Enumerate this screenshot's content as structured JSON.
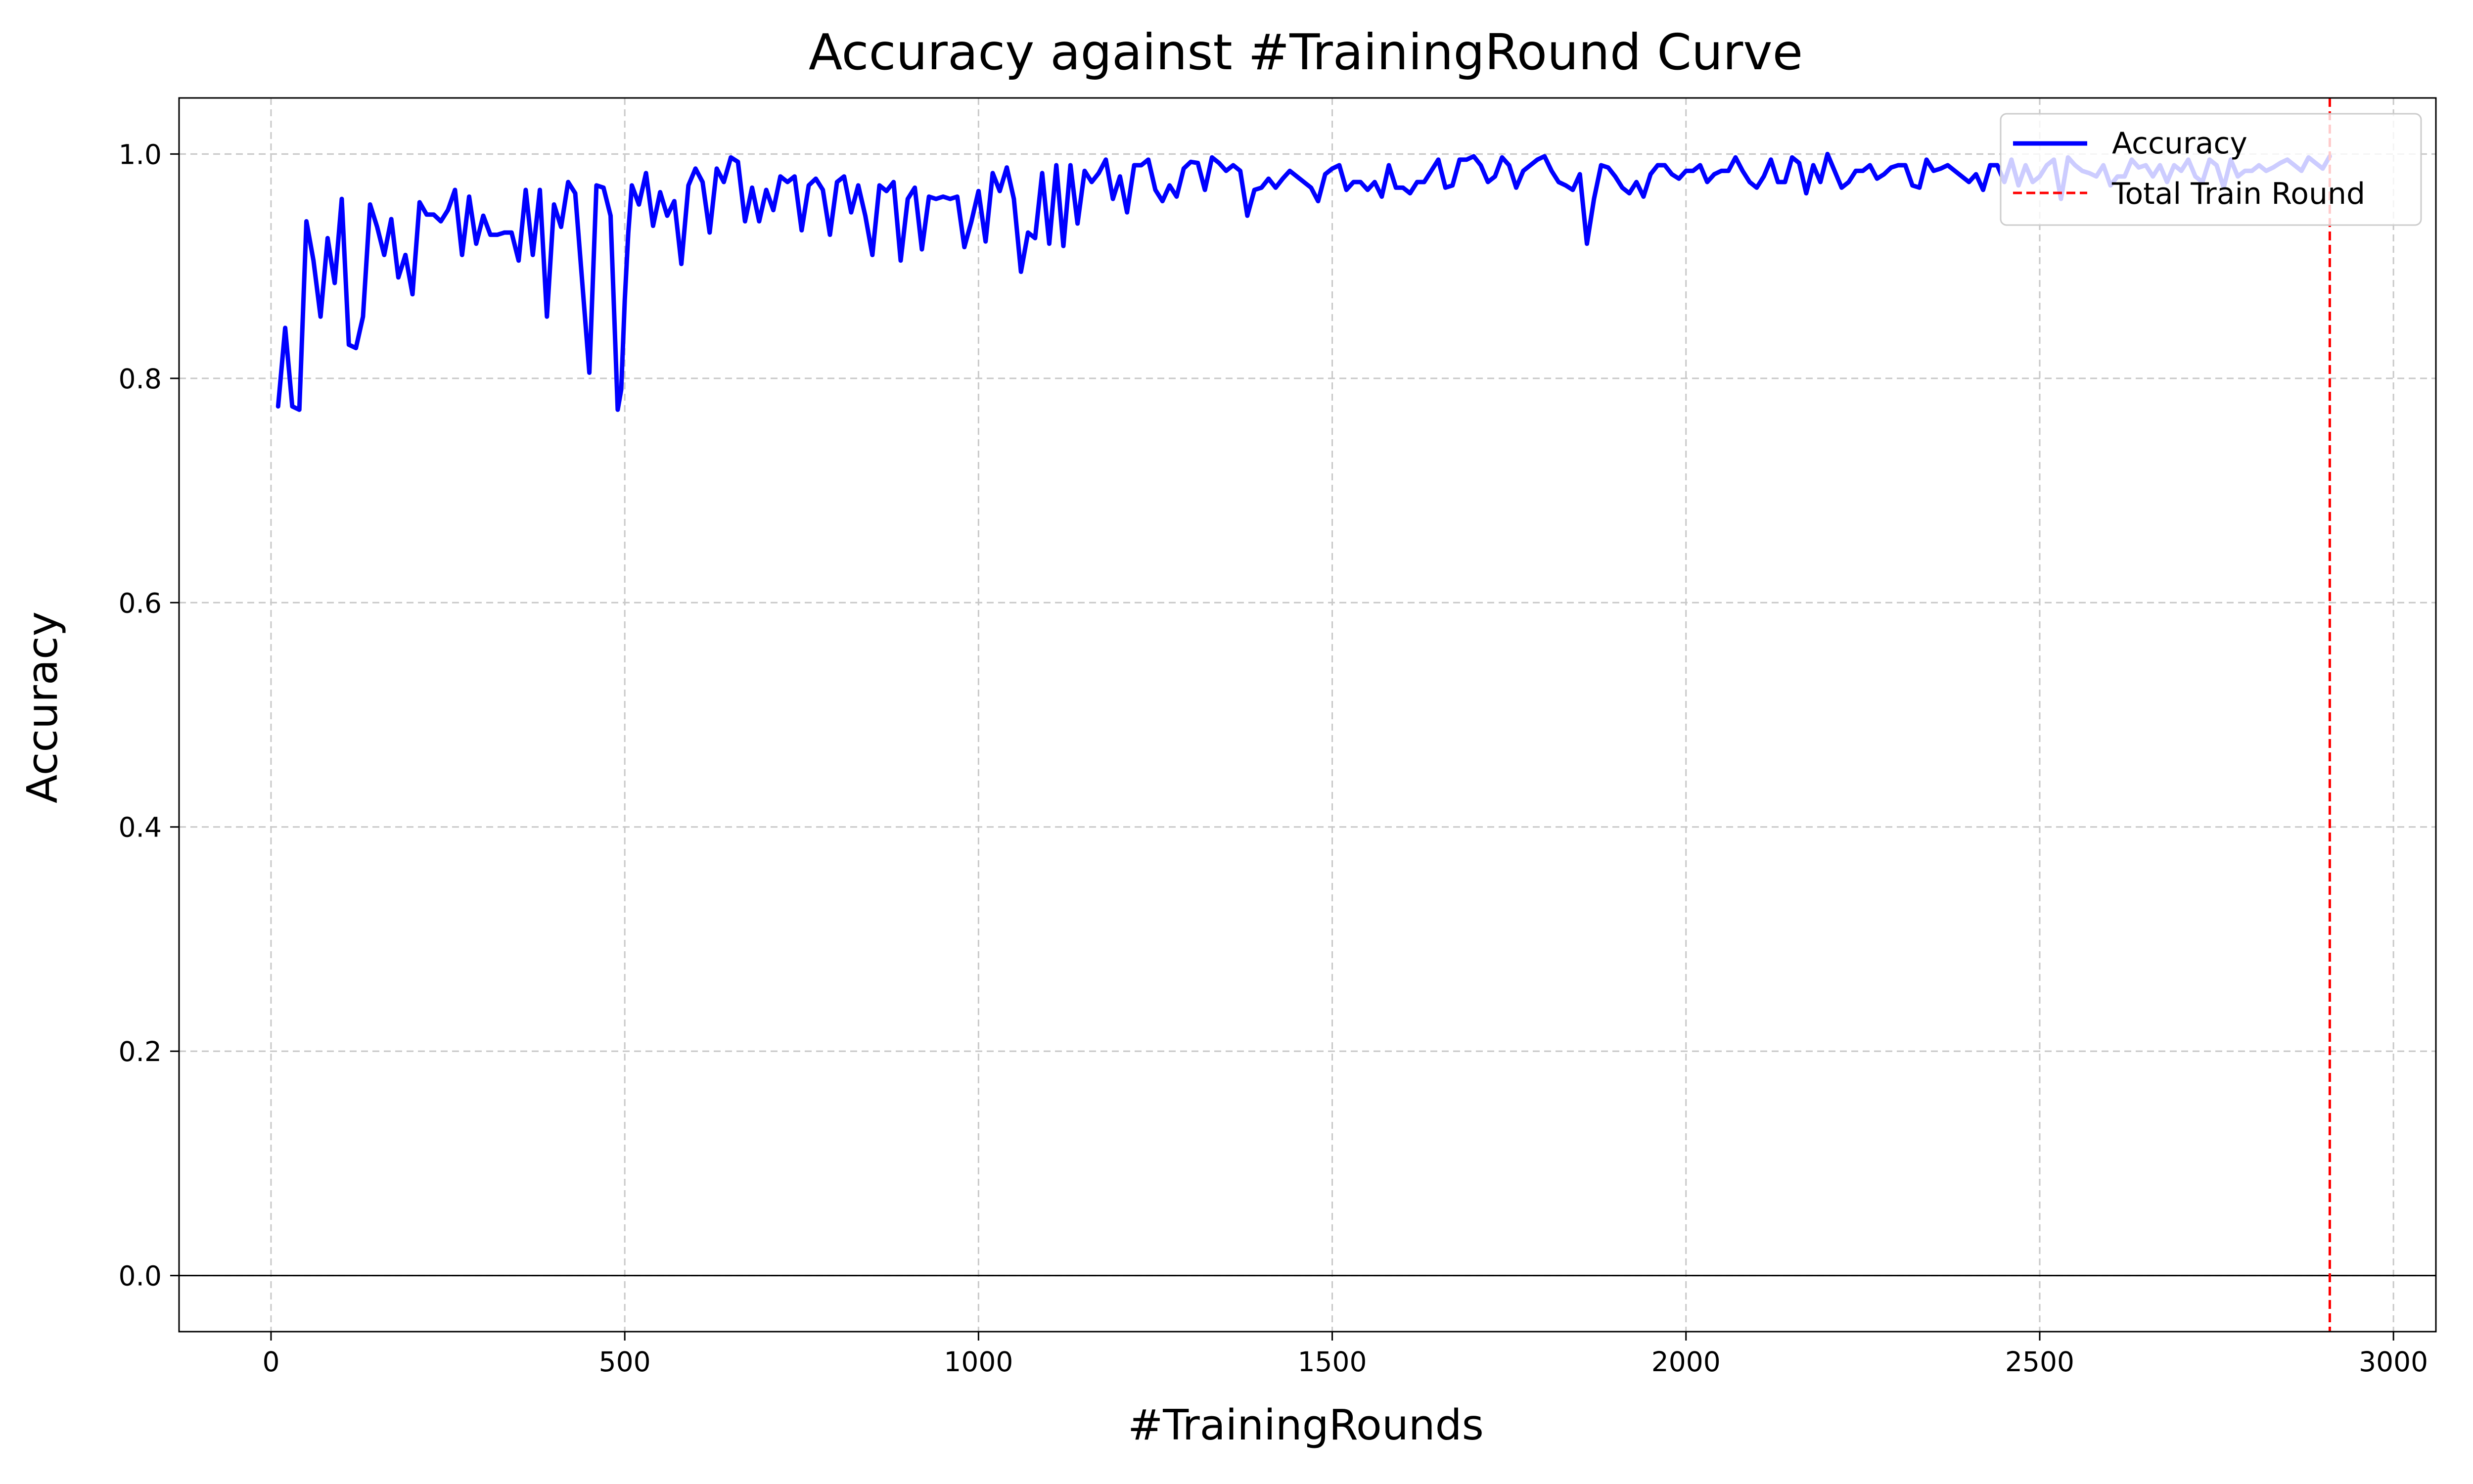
{
  "chart_data": {
    "type": "line",
    "title": "Accuracy against #TrainingRound Curve",
    "xlabel": "#TrainingRounds",
    "ylabel": "Accuracy",
    "xlim": [
      -130,
      3060
    ],
    "ylim": [
      -0.05,
      1.05
    ],
    "xticks": [
      0,
      500,
      1000,
      1500,
      2000,
      2500,
      3000
    ],
    "yticks": [
      0.0,
      0.2,
      0.4,
      0.6,
      0.8,
      1.0
    ],
    "xtick_labels": [
      "0",
      "500",
      "1000",
      "1500",
      "2000",
      "2500",
      "3000"
    ],
    "ytick_labels": [
      "0.0",
      "0.2",
      "0.4",
      "0.6",
      "0.8",
      "1.0"
    ],
    "grid": true,
    "legend_position": "top-right",
    "colors": {
      "accuracy": "#0000ff",
      "total_train_round": "#ff0000",
      "grid": "#c8c8c8"
    },
    "baseline_y": 0.0,
    "series": [
      {
        "name": "Accuracy",
        "style": "solid",
        "x": [
          10,
          20,
          30,
          40,
          50,
          60,
          70,
          80,
          90,
          100,
          110,
          120,
          130,
          140,
          150,
          160,
          170,
          180,
          190,
          200,
          210,
          220,
          230,
          240,
          250,
          260,
          270,
          280,
          290,
          300,
          310,
          320,
          330,
          340,
          350,
          360,
          370,
          380,
          390,
          400,
          410,
          420,
          430,
          440,
          450,
          460,
          470,
          480,
          490,
          495,
          500,
          505,
          510,
          520,
          530,
          540,
          550,
          560,
          570,
          580,
          590,
          600,
          610,
          620,
          630,
          640,
          650,
          660,
          670,
          680,
          690,
          700,
          710,
          720,
          730,
          740,
          750,
          760,
          770,
          780,
          790,
          800,
          810,
          820,
          830,
          840,
          850,
          860,
          870,
          880,
          890,
          900,
          910,
          920,
          930,
          940,
          950,
          960,
          970,
          980,
          990,
          1000,
          1010,
          1020,
          1030,
          1040,
          1050,
          1060,
          1070,
          1080,
          1090,
          1100,
          1110,
          1120,
          1130,
          1140,
          1150,
          1160,
          1170,
          1180,
          1190,
          1200,
          1210,
          1220,
          1230,
          1240,
          1250,
          1260,
          1270,
          1280,
          1290,
          1300,
          1310,
          1320,
          1330,
          1340,
          1350,
          1360,
          1370,
          1380,
          1390,
          1400,
          1410,
          1420,
          1430,
          1440,
          1450,
          1460,
          1470,
          1480,
          1490,
          1500,
          1510,
          1520,
          1530,
          1540,
          1550,
          1560,
          1570,
          1580,
          1590,
          1600,
          1610,
          1620,
          1630,
          1640,
          1650,
          1660,
          1670,
          1680,
          1690,
          1700,
          1710,
          1720,
          1730,
          1740,
          1750,
          1760,
          1770,
          1780,
          1790,
          1800,
          1810,
          1820,
          1830,
          1840,
          1850,
          1860,
          1870,
          1880,
          1890,
          1900,
          1910,
          1920,
          1930,
          1940,
          1950,
          1960,
          1970,
          1980,
          1990,
          2000,
          2010,
          2020,
          2030,
          2040,
          2050,
          2060,
          2070,
          2080,
          2090,
          2100,
          2110,
          2120,
          2130,
          2140,
          2150,
          2160,
          2170,
          2180,
          2190,
          2200,
          2210,
          2220,
          2230,
          2240,
          2250,
          2260,
          2270,
          2280,
          2290,
          2300,
          2310,
          2320,
          2330,
          2340,
          2350,
          2360,
          2370,
          2380,
          2390,
          2400,
          2410,
          2420,
          2430,
          2440,
          2450,
          2460,
          2470,
          2480,
          2490,
          2500,
          2510,
          2520,
          2530,
          2540,
          2550,
          2560,
          2570,
          2580,
          2590,
          2600,
          2610,
          2620,
          2630,
          2640,
          2650,
          2660,
          2670,
          2680,
          2690,
          2700,
          2710,
          2720,
          2730,
          2740,
          2750,
          2760,
          2770,
          2780,
          2790,
          2800,
          2810,
          2820,
          2830,
          2840,
          2850,
          2860,
          2870,
          2880,
          2890,
          2900,
          2910
        ],
        "values": [
          0.775,
          0.845,
          0.775,
          0.772,
          0.94,
          0.905,
          0.855,
          0.925,
          0.885,
          0.96,
          0.83,
          0.827,
          0.855,
          0.955,
          0.935,
          0.91,
          0.942,
          0.89,
          0.91,
          0.875,
          0.957,
          0.946,
          0.946,
          0.94,
          0.95,
          0.968,
          0.91,
          0.962,
          0.92,
          0.945,
          0.928,
          0.928,
          0.93,
          0.93,
          0.905,
          0.968,
          0.91,
          0.968,
          0.855,
          0.955,
          0.935,
          0.975,
          0.965,
          0.885,
          0.805,
          0.972,
          0.97,
          0.945,
          0.772,
          0.79,
          0.87,
          0.93,
          0.972,
          0.955,
          0.983,
          0.936,
          0.966,
          0.945,
          0.958,
          0.902,
          0.972,
          0.987,
          0.975,
          0.93,
          0.987,
          0.975,
          0.997,
          0.993,
          0.94,
          0.97,
          0.94,
          0.968,
          0.95,
          0.98,
          0.975,
          0.98,
          0.932,
          0.972,
          0.978,
          0.968,
          0.928,
          0.975,
          0.98,
          0.948,
          0.972,
          0.945,
          0.91,
          0.972,
          0.967,
          0.975,
          0.905,
          0.96,
          0.97,
          0.915,
          0.962,
          0.96,
          0.962,
          0.96,
          0.962,
          0.917,
          0.94,
          0.967,
          0.922,
          0.983,
          0.967,
          0.988,
          0.96,
          0.895,
          0.93,
          0.925,
          0.983,
          0.92,
          0.99,
          0.918,
          0.99,
          0.938,
          0.985,
          0.975,
          0.983,
          0.995,
          0.96,
          0.98,
          0.948,
          0.99,
          0.99,
          0.995,
          0.968,
          0.958,
          0.972,
          0.962,
          0.987,
          0.993,
          0.992,
          0.968,
          0.997,
          0.992,
          0.985,
          0.99,
          0.985,
          0.945,
          0.968,
          0.97,
          0.978,
          0.97,
          0.978,
          0.985,
          0.98,
          0.975,
          0.97,
          0.958,
          0.982,
          0.987,
          0.99,
          0.968,
          0.975,
          0.975,
          0.968,
          0.975,
          0.962,
          0.99,
          0.97,
          0.97,
          0.965,
          0.975,
          0.975,
          0.985,
          0.995,
          0.97,
          0.972,
          0.995,
          0.995,
          0.998,
          0.99,
          0.975,
          0.98,
          0.997,
          0.99,
          0.97,
          0.985,
          0.99,
          0.995,
          0.998,
          0.985,
          0.975,
          0.972,
          0.968,
          0.982,
          0.92,
          0.96,
          0.99,
          0.988,
          0.98,
          0.97,
          0.965,
          0.975,
          0.962,
          0.982,
          0.99,
          0.99,
          0.982,
          0.978,
          0.985,
          0.985,
          0.99,
          0.975,
          0.982,
          0.985,
          0.985,
          0.997,
          0.985,
          0.975,
          0.97,
          0.98,
          0.995,
          0.975,
          0.975,
          0.997,
          0.992,
          0.965,
          0.99,
          0.975,
          1.0,
          0.985,
          0.97,
          0.975,
          0.985,
          0.985,
          0.99,
          0.978,
          0.982,
          0.988,
          0.99,
          0.99,
          0.972,
          0.97,
          0.995,
          0.985,
          0.987,
          0.99,
          0.985,
          0.98,
          0.975,
          0.982,
          0.968,
          0.99,
          0.99,
          0.975,
          0.995,
          0.972,
          0.99,
          0.975,
          0.98,
          0.99,
          0.995,
          0.96,
          0.997,
          0.99,
          0.985,
          0.983,
          0.98,
          0.99,
          0.972,
          0.98,
          0.98,
          0.995,
          0.988,
          0.99,
          0.98,
          0.99,
          0.975,
          0.99,
          0.985,
          0.995,
          0.98,
          0.975,
          0.995,
          0.99,
          0.97,
          0.995,
          0.98,
          0.985,
          0.985,
          0.99,
          0.985,
          0.988,
          0.992,
          0.995,
          0.99,
          0.985,
          0.997,
          0.992,
          0.987,
          0.998
        ]
      },
      {
        "name": "Total Train Round",
        "style": "dashed",
        "x_constant": 2910
      }
    ]
  }
}
